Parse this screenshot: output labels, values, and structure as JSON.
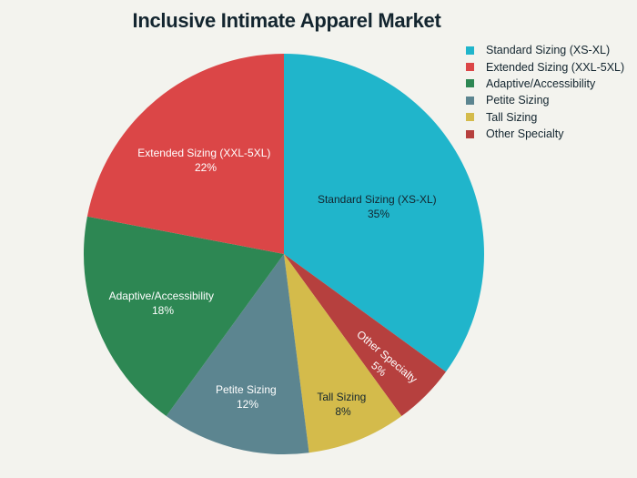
{
  "chart_data": {
    "type": "pie",
    "title": "Inclusive Intimate Apparel Market",
    "categories": [
      "Standard Sizing (XS-XL)",
      "Other Specialty",
      "Tall Sizing",
      "Petite Sizing",
      "Adaptive/Accessibility",
      "Extended Sizing (XXL-5XL)"
    ],
    "values": [
      35,
      5,
      8,
      12,
      18,
      22
    ],
    "unit": "%",
    "colors": [
      "#20b5cb",
      "#b6403e",
      "#d4bb4b",
      "#5c8590",
      "#2d8753",
      "#db4647"
    ],
    "legend_position": "right-top",
    "start_angle_deg": 0,
    "direction": "clockwise"
  },
  "legend": {
    "items": [
      {
        "label": "Standard Sizing (XS-XL)",
        "color": "#20b5cb"
      },
      {
        "label": "Extended Sizing (XXL-5XL)",
        "color": "#db4647"
      },
      {
        "label": "Adaptive/Accessibility",
        "color": "#2d8753"
      },
      {
        "label": "Petite Sizing",
        "color": "#5c8590"
      },
      {
        "label": "Tall Sizing",
        "color": "#d4bb4b"
      },
      {
        "label": "Other Specialty",
        "color": "#b6403e"
      }
    ]
  },
  "slice_labels": [
    {
      "name": "Standard Sizing (XS-XL)",
      "pct": "35%"
    },
    {
      "name": "Other Specialty",
      "pct": "5%"
    },
    {
      "name": "Tall Sizing",
      "pct": "8%"
    },
    {
      "name": "Petite Sizing",
      "pct": "12%"
    },
    {
      "name": "Adaptive/Accessibility",
      "pct": "18%"
    },
    {
      "name": "Extended Sizing (XXL-5XL)",
      "pct": "22%"
    }
  ]
}
